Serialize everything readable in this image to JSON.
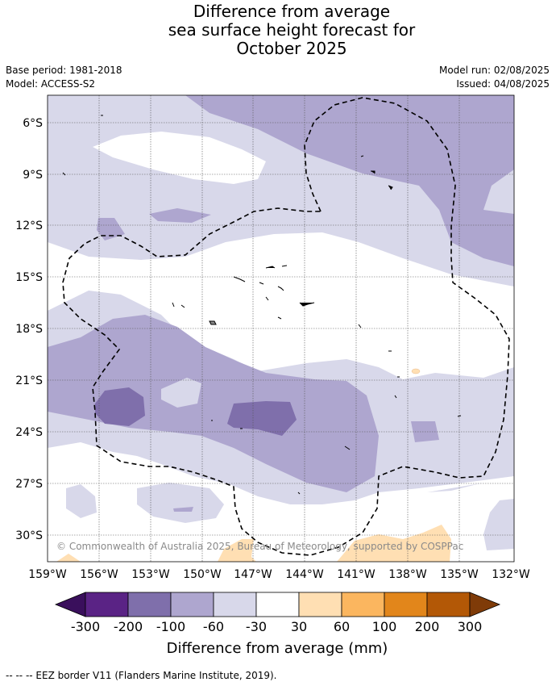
{
  "title": {
    "line1": "Difference from average",
    "line2": "sea surface height forecast for",
    "line3": "October 2025"
  },
  "meta": {
    "base_period": "Base period: 1981-2018",
    "model": "Model: ACCESS-S2",
    "model_run": "Model run: 02/08/2025",
    "issued": "Issued: 04/08/2025"
  },
  "map": {
    "lat_labels": [
      "6°S",
      "9°S",
      "12°S",
      "15°S",
      "18°S",
      "21°S",
      "24°S",
      "27°S",
      "30°S"
    ],
    "lon_labels": [
      "159°W",
      "156°W",
      "153°W",
      "150°W",
      "147°W",
      "144°W",
      "141°W",
      "138°W",
      "135°W",
      "132°W"
    ],
    "copyright": "© Commonwealth of Australia 2025, Bureau of Meteorology, supported by COSPPac"
  },
  "colorbar": {
    "ticks": [
      "-300",
      "-200",
      "-100",
      "-60",
      "-30",
      "30",
      "60",
      "100",
      "200",
      "300"
    ],
    "colors": [
      "#3a0f5c",
      "#5a2385",
      "#7f6fab",
      "#aea6cf",
      "#d8d8ea",
      "#ffffff",
      "#ffdfb3",
      "#fbb65f",
      "#e2861b",
      "#b35806",
      "#7f3b08"
    ],
    "label": "Difference from average (mm)"
  },
  "footnote": "-- -- -- EEZ border V11 (Flanders Marine Institute, 2019)."
}
